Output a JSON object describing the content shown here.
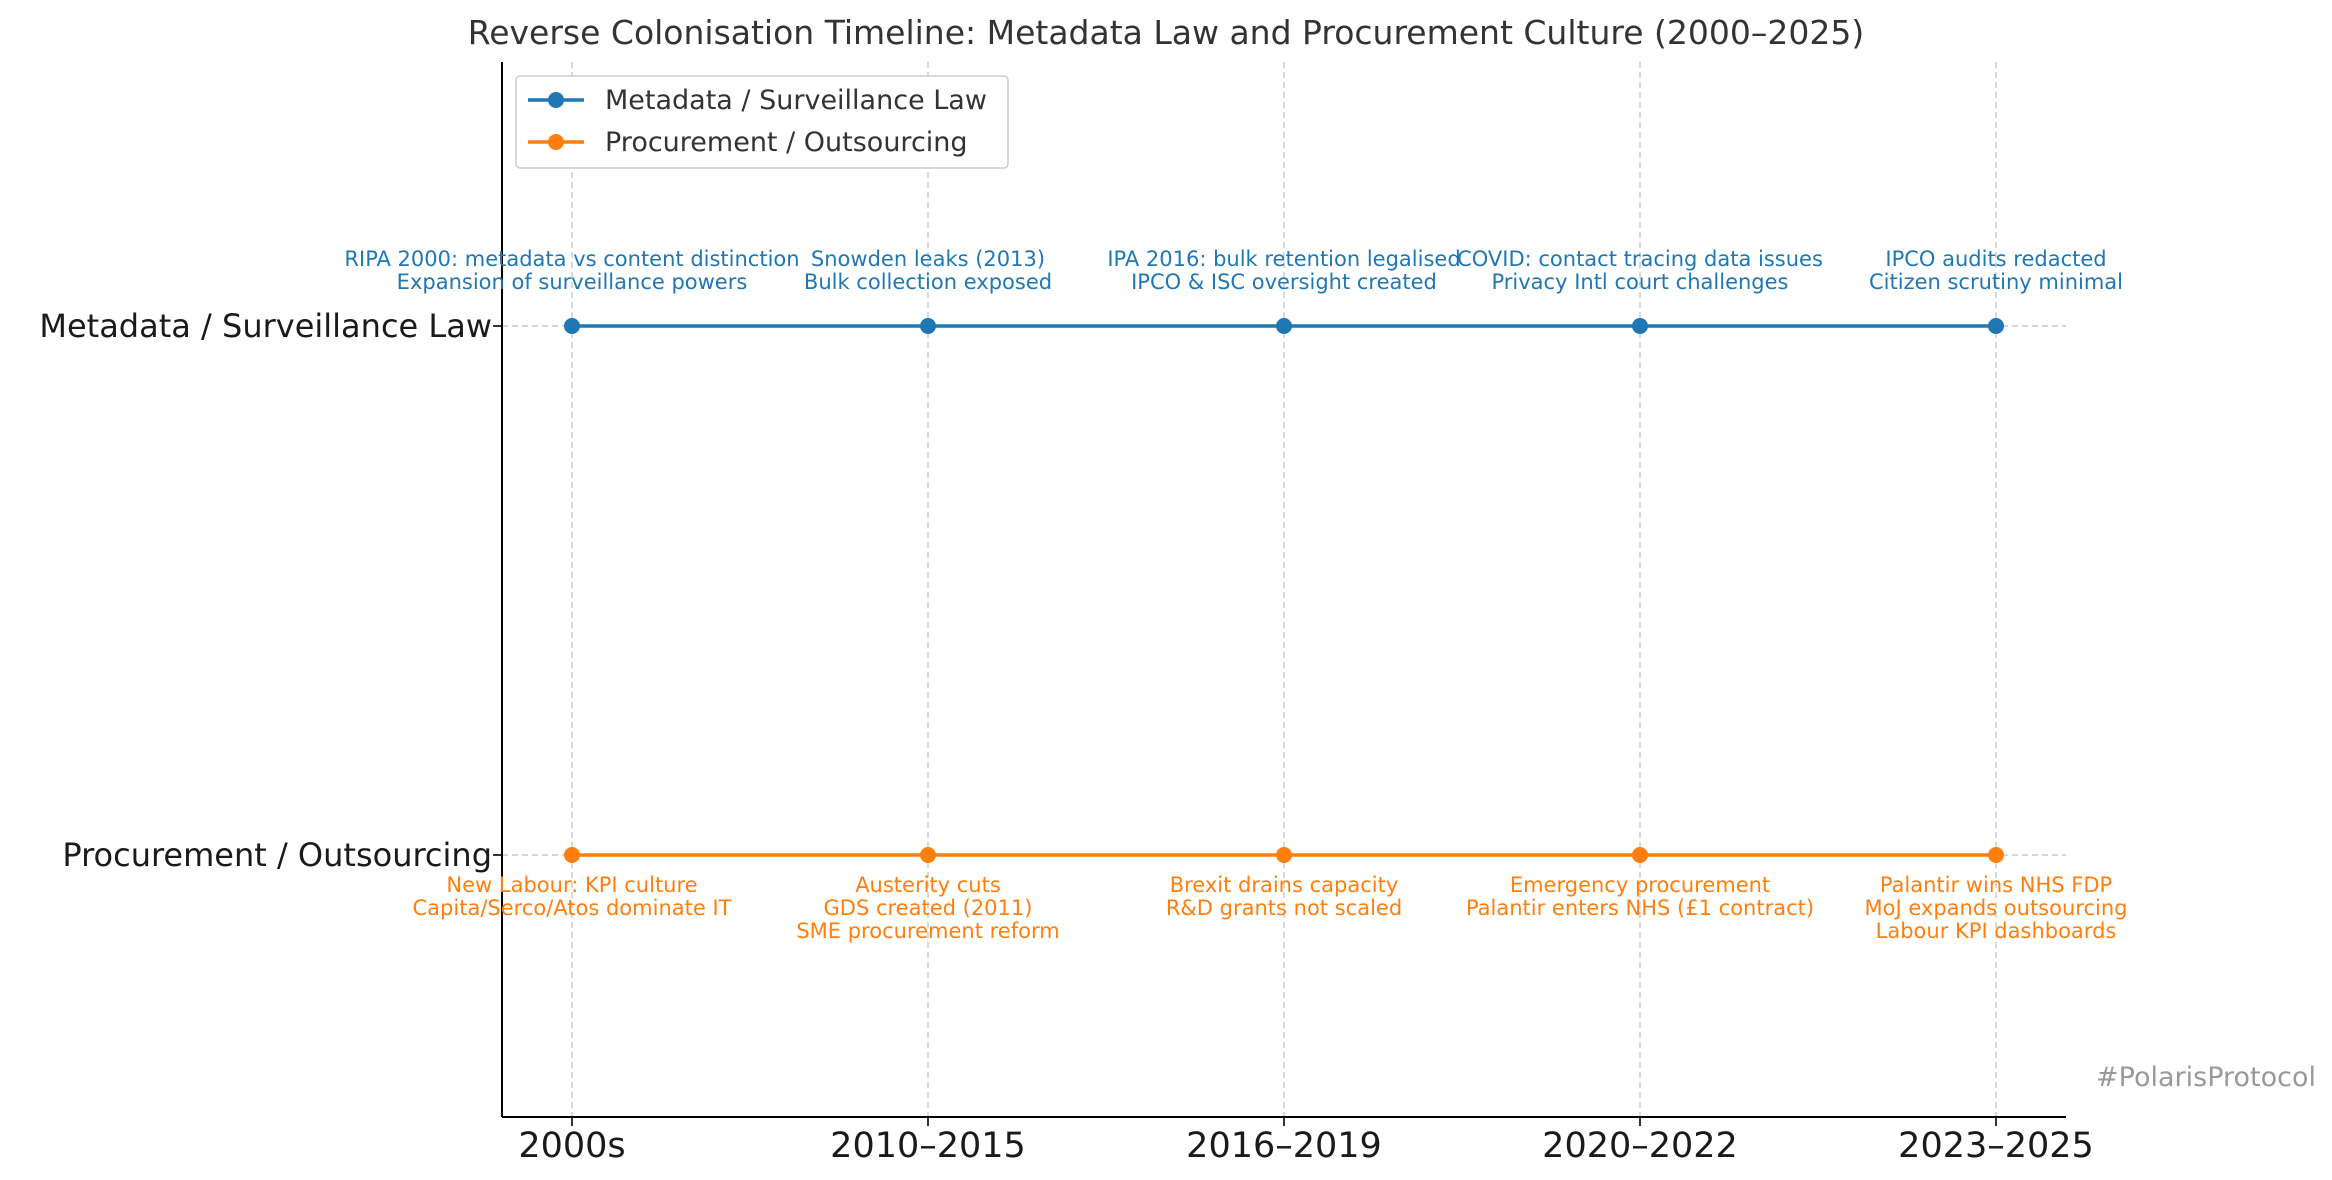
{
  "chart_data": {
    "type": "line",
    "title": "Reverse Colonisation Timeline: Metadata Law and Procurement Culture (2000–2025)",
    "xlabel": "",
    "ylabel": "",
    "categories": [
      "2000s",
      "2010–2015",
      "2016–2019",
      "2020–2022",
      "2023–2025"
    ],
    "y_categories": [
      "Metadata / Surveillance Law",
      "Procurement / Outsourcing"
    ],
    "grid": true,
    "legend_position": "top-left",
    "series": [
      {
        "name": "Metadata / Surveillance Law",
        "color": "#1f77b4",
        "y": "Metadata / Surveillance Law",
        "annotation_side": "above",
        "annotations": [
          [
            "RIPA 2000: metadata vs content distinction",
            "Expansion of surveillance powers"
          ],
          [
            "Snowden leaks (2013)",
            "Bulk collection exposed"
          ],
          [
            "IPA 2016: bulk retention legalised",
            "IPCO & ISC oversight created"
          ],
          [
            "COVID: contact tracing data issues",
            "Privacy Intl court challenges"
          ],
          [
            "IPCO audits redacted",
            "Citizen scrutiny minimal"
          ]
        ]
      },
      {
        "name": "Procurement / Outsourcing",
        "color": "#ff7f0e",
        "y": "Procurement / Outsourcing",
        "annotation_side": "below",
        "annotations": [
          [
            "New Labour: KPI culture",
            "Capita/Serco/Atos dominate IT"
          ],
          [
            "Austerity cuts",
            "GDS created (2011)",
            "SME procurement reform"
          ],
          [
            "Brexit drains capacity",
            "R&D grants not scaled"
          ],
          [
            "Emergency procurement",
            "Palantir enters NHS (£1 contract)"
          ],
          [
            "Palantir wins NHS FDP",
            "MoJ expands outsourcing",
            "Labour KPI dashboards"
          ]
        ]
      }
    ],
    "watermark": "#PolarisProtocol"
  }
}
